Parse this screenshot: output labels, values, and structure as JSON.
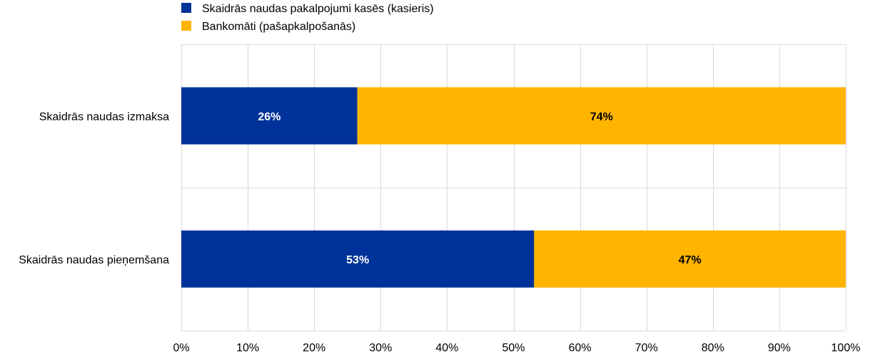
{
  "chart_data": {
    "type": "bar",
    "orientation": "horizontal",
    "stacked": true,
    "categories": [
      "Skaidrās naudas izmaksa",
      "Skaidrās naudas pieņemšana"
    ],
    "series": [
      {
        "name": "Skaidrās naudas pakalpojumi kasēs (kasieris)",
        "color": "#003399",
        "values": [
          26.5,
          53.1
        ],
        "labels": [
          "26%",
          "53%"
        ],
        "label_color": "#ffffff"
      },
      {
        "name": "Bankomāti (pašapkalpošanās)",
        "color": "#ffb400",
        "values": [
          73.5,
          46.9
        ],
        "labels": [
          "74%",
          "47%"
        ],
        "label_color": "#000000"
      }
    ],
    "xlim": [
      0,
      100
    ],
    "x_ticks": [
      0,
      10,
      20,
      30,
      40,
      50,
      60,
      70,
      80,
      90,
      100
    ],
    "x_tick_labels": [
      "0%",
      "10%",
      "20%",
      "30%",
      "40%",
      "50%",
      "60%",
      "70%",
      "80%",
      "90%",
      "100%"
    ],
    "grid": true,
    "grid_color": "#d9d9d9",
    "legend_position": "top-left"
  }
}
